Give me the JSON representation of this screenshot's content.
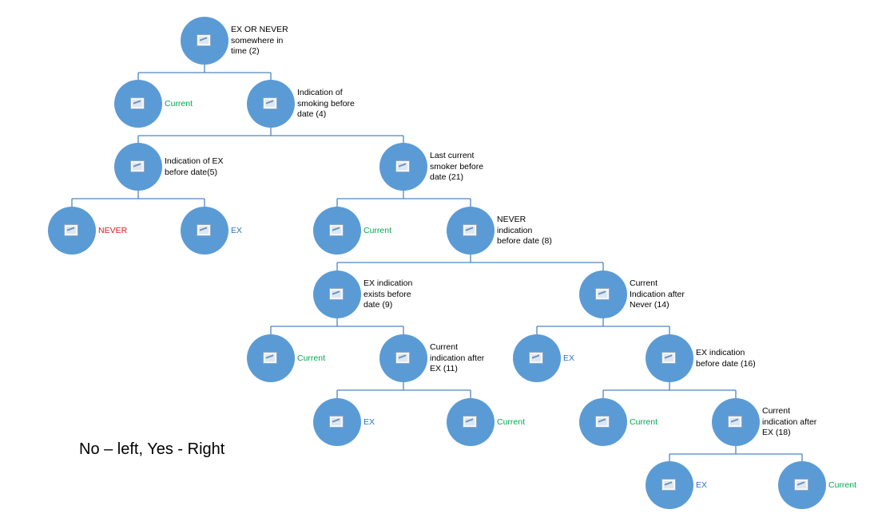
{
  "diagram": {
    "caption": "No – left, Yes - Right",
    "nodes": [
      {
        "id": "n2",
        "label": "EX OR NEVER somewhere in time (2)",
        "kind": "decision"
      },
      {
        "id": "c1",
        "label": "Current",
        "kind": "outcome",
        "color": "#00a94f"
      },
      {
        "id": "n4",
        "label": "Indication of smoking before date (4)",
        "kind": "decision"
      },
      {
        "id": "n5",
        "label": "Indication of EX before date(5)",
        "kind": "decision"
      },
      {
        "id": "n21",
        "label": "Last current smoker before date (21)",
        "kind": "decision"
      },
      {
        "id": "o_never",
        "label": "NEVER",
        "kind": "outcome",
        "color": "#e01b1b"
      },
      {
        "id": "o_ex1",
        "label": "EX",
        "kind": "outcome",
        "color": "#2e74b5"
      },
      {
        "id": "c2",
        "label": "Current",
        "kind": "outcome",
        "color": "#00a94f"
      },
      {
        "id": "n8",
        "label": "NEVER indication before date (8)",
        "kind": "decision"
      },
      {
        "id": "n9",
        "label": "EX indication exists before date (9)",
        "kind": "decision"
      },
      {
        "id": "n14",
        "label": "Current Indication after Never (14)",
        "kind": "decision"
      },
      {
        "id": "c3",
        "label": "Current",
        "kind": "outcome",
        "color": "#00a94f"
      },
      {
        "id": "n11",
        "label": "Current indication after EX (11)",
        "kind": "decision"
      },
      {
        "id": "o_ex2",
        "label": "EX",
        "kind": "outcome",
        "color": "#2e74b5"
      },
      {
        "id": "n16",
        "label": "EX indication before date (16)",
        "kind": "decision"
      },
      {
        "id": "o_ex3",
        "label": "EX",
        "kind": "outcome",
        "color": "#2e74b5"
      },
      {
        "id": "c4",
        "label": "Current",
        "kind": "outcome",
        "color": "#00a94f"
      },
      {
        "id": "c5",
        "label": "Current",
        "kind": "outcome",
        "color": "#00a94f"
      },
      {
        "id": "n18",
        "label": "Current indication after EX (18)",
        "kind": "decision"
      },
      {
        "id": "o_ex4",
        "label": "EX",
        "kind": "outcome",
        "color": "#2e74b5"
      },
      {
        "id": "c6",
        "label": "Current",
        "kind": "outcome",
        "color": "#00a94f"
      }
    ],
    "edges": [
      [
        "n2",
        "c1"
      ],
      [
        "n2",
        "n4"
      ],
      [
        "n4",
        "n5"
      ],
      [
        "n4",
        "n21"
      ],
      [
        "n5",
        "o_never"
      ],
      [
        "n5",
        "o_ex1"
      ],
      [
        "n21",
        "c2"
      ],
      [
        "n21",
        "n8"
      ],
      [
        "n8",
        "n9"
      ],
      [
        "n8",
        "n14"
      ],
      [
        "n9",
        "c3"
      ],
      [
        "n9",
        "n11"
      ],
      [
        "n14",
        "o_ex2"
      ],
      [
        "n14",
        "n16"
      ],
      [
        "n11",
        "o_ex3"
      ],
      [
        "n11",
        "c4"
      ],
      [
        "n16",
        "c5"
      ],
      [
        "n16",
        "n18"
      ],
      [
        "n18",
        "o_ex4"
      ],
      [
        "n18",
        "c6"
      ]
    ]
  }
}
